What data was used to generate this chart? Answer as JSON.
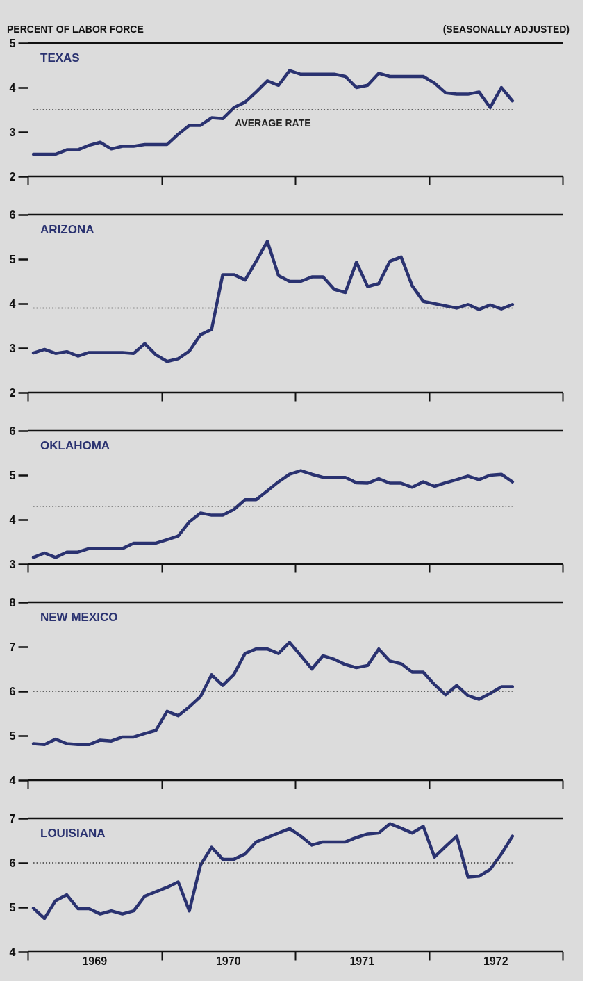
{
  "chart_data": [
    {
      "type": "line",
      "title": "TEXAS",
      "ylabel": "PERCENT OF LABOR FORCE",
      "subtitle": "(SEASONALLY ADJUSTED)",
      "x": [
        1969.042,
        1969.125,
        1969.208,
        1969.292,
        1969.375,
        1969.458,
        1969.542,
        1969.625,
        1969.708,
        1969.792,
        1969.875,
        1969.958,
        1970.042,
        1970.125,
        1970.208,
        1970.292,
        1970.375,
        1970.458,
        1970.542,
        1970.625,
        1970.708,
        1970.792,
        1970.875,
        1970.958,
        1971.042,
        1971.125,
        1971.208,
        1971.292,
        1971.375,
        1971.458,
        1971.542,
        1971.625,
        1971.708,
        1971.792,
        1971.875,
        1971.958,
        1972.042,
        1972.125,
        1972.208,
        1972.292,
        1972.375,
        1972.458,
        1972.542,
        1972.625
      ],
      "series": [
        {
          "color": "#2a3270",
          "values": [
            2.5,
            2.5,
            2.5,
            2.6,
            2.6,
            2.7,
            2.77,
            2.62,
            2.68,
            2.68,
            2.72,
            2.72,
            2.72,
            2.95,
            3.15,
            3.15,
            3.32,
            3.3,
            3.55,
            3.67,
            3.9,
            4.15,
            4.05,
            4.38,
            4.3,
            4.3,
            4.3,
            4.3,
            4.25,
            4.0,
            4.05,
            4.32,
            4.25,
            4.25,
            4.25,
            4.25,
            4.1,
            3.88,
            3.85,
            3.85,
            3.9,
            3.55,
            4.0,
            3.7
          ]
        }
      ],
      "xlim": [
        1969,
        1973
      ],
      "xticks": [
        {
          "value": 1969,
          "label": null
        },
        {
          "value": 1970,
          "label": null
        },
        {
          "value": 1971,
          "label": null
        },
        {
          "value": 1972,
          "label": null
        },
        {
          "value": 1973,
          "label": null
        }
      ],
      "ylim": [
        2,
        5
      ],
      "yticks": [
        2,
        3,
        4,
        5
      ],
      "tick_labels": "y",
      "line_style": "solid",
      "ref_lines": [
        {
          "axis": "y",
          "value": 3.5,
          "label": "AVERAGE RATE",
          "line_style": "dotted",
          "color": "#333333"
        }
      ]
    },
    {
      "type": "line",
      "title": "ARIZONA",
      "x": [
        1969.042,
        1969.125,
        1969.208,
        1969.292,
        1969.375,
        1969.458,
        1969.542,
        1969.625,
        1969.708,
        1969.792,
        1969.875,
        1969.958,
        1970.042,
        1970.125,
        1970.208,
        1970.292,
        1970.375,
        1970.458,
        1970.542,
        1970.625,
        1970.708,
        1970.792,
        1970.875,
        1970.958,
        1971.042,
        1971.125,
        1971.208,
        1971.292,
        1971.375,
        1971.458,
        1971.542,
        1971.625,
        1971.708,
        1971.792,
        1971.875,
        1971.958,
        1972.042,
        1972.125,
        1972.208,
        1972.292,
        1972.375,
        1972.458,
        1972.542,
        1972.625
      ],
      "series": [
        {
          "color": "#2a3270",
          "values": [
            2.89,
            2.97,
            2.88,
            2.92,
            2.82,
            2.9,
            2.9,
            2.9,
            2.9,
            2.88,
            3.1,
            2.85,
            2.7,
            2.76,
            2.93,
            3.3,
            3.42,
            4.65,
            4.65,
            4.53,
            4.95,
            5.4,
            4.63,
            4.5,
            4.5,
            4.6,
            4.6,
            4.32,
            4.25,
            4.93,
            4.38,
            4.45,
            4.95,
            5.05,
            4.4,
            4.05,
            4.0,
            3.95,
            3.9,
            3.98,
            3.87,
            3.97,
            3.88,
            3.98
          ]
        }
      ],
      "xlim": [
        1969,
        1973
      ],
      "xticks": [
        {
          "value": 1969,
          "label": null
        },
        {
          "value": 1970,
          "label": null
        },
        {
          "value": 1971,
          "label": null
        },
        {
          "value": 1972,
          "label": null
        },
        {
          "value": 1973,
          "label": null
        }
      ],
      "ylim": [
        2,
        6
      ],
      "yticks": [
        2,
        3,
        4,
        5,
        6
      ],
      "tick_labels": "y",
      "line_style": "solid",
      "ref_lines": [
        {
          "axis": "y",
          "value": 3.9,
          "line_style": "dotted",
          "color": "#333333"
        }
      ]
    },
    {
      "type": "line",
      "title": "OKLAHOMA",
      "x": [
        1969.042,
        1969.125,
        1969.208,
        1969.292,
        1969.375,
        1969.458,
        1969.542,
        1969.625,
        1969.708,
        1969.792,
        1969.875,
        1969.958,
        1970.042,
        1970.125,
        1970.208,
        1970.292,
        1970.375,
        1970.458,
        1970.542,
        1970.625,
        1970.708,
        1970.792,
        1970.875,
        1970.958,
        1971.042,
        1971.125,
        1971.208,
        1971.292,
        1971.375,
        1971.458,
        1971.542,
        1971.625,
        1971.708,
        1971.792,
        1971.875,
        1971.958,
        1972.042,
        1972.125,
        1972.208,
        1972.292,
        1972.375,
        1972.458,
        1972.542,
        1972.625
      ],
      "series": [
        {
          "color": "#2a3270",
          "values": [
            3.15,
            3.25,
            3.15,
            3.27,
            3.27,
            3.35,
            3.35,
            3.35,
            3.35,
            3.47,
            3.47,
            3.47,
            3.55,
            3.63,
            3.95,
            4.15,
            4.1,
            4.1,
            4.23,
            4.45,
            4.45,
            4.65,
            4.85,
            5.02,
            5.1,
            5.02,
            4.95,
            4.95,
            4.95,
            4.83,
            4.82,
            4.92,
            4.82,
            4.82,
            4.73,
            4.85,
            4.75,
            4.83,
            4.9,
            4.98,
            4.9,
            5.0,
            5.02,
            4.85
          ]
        }
      ],
      "xlim": [
        1969,
        1973
      ],
      "xticks": [
        {
          "value": 1969,
          "label": null
        },
        {
          "value": 1970,
          "label": null
        },
        {
          "value": 1971,
          "label": null
        },
        {
          "value": 1972,
          "label": null
        },
        {
          "value": 1973,
          "label": null
        }
      ],
      "ylim": [
        3,
        6
      ],
      "yticks": [
        3,
        4,
        5,
        6
      ],
      "tick_labels": "y",
      "line_style": "solid",
      "ref_lines": [
        {
          "axis": "y",
          "value": 4.3,
          "line_style": "dotted",
          "color": "#333333"
        }
      ]
    },
    {
      "type": "line",
      "title": "NEW MEXICO",
      "x": [
        1969.042,
        1969.125,
        1969.208,
        1969.292,
        1969.375,
        1969.458,
        1969.542,
        1969.625,
        1969.708,
        1969.792,
        1969.875,
        1969.958,
        1970.042,
        1970.125,
        1970.208,
        1970.292,
        1970.375,
        1970.458,
        1970.542,
        1970.625,
        1970.708,
        1970.792,
        1970.875,
        1970.958,
        1971.042,
        1971.125,
        1971.208,
        1971.292,
        1971.375,
        1971.458,
        1971.542,
        1971.625,
        1971.708,
        1971.792,
        1971.875,
        1971.958,
        1972.042,
        1972.125,
        1972.208,
        1972.292,
        1972.375,
        1972.458,
        1972.542,
        1972.625
      ],
      "series": [
        {
          "color": "#2a3270",
          "values": [
            4.82,
            4.8,
            4.92,
            4.82,
            4.8,
            4.8,
            4.9,
            4.88,
            4.97,
            4.97,
            5.05,
            5.12,
            5.55,
            5.45,
            5.65,
            5.88,
            6.37,
            6.13,
            6.38,
            6.85,
            6.95,
            6.95,
            6.85,
            7.1,
            6.8,
            6.5,
            6.8,
            6.72,
            6.6,
            6.53,
            6.58,
            6.95,
            6.68,
            6.62,
            6.43,
            6.43,
            6.15,
            5.92,
            6.13,
            5.9,
            5.82,
            5.95,
            6.1,
            6.1
          ]
        }
      ],
      "xlim": [
        1969,
        1973
      ],
      "xticks": [
        {
          "value": 1969,
          "label": null
        },
        {
          "value": 1970,
          "label": null
        },
        {
          "value": 1971,
          "label": null
        },
        {
          "value": 1972,
          "label": null
        },
        {
          "value": 1973,
          "label": null
        }
      ],
      "ylim": [
        4,
        8
      ],
      "yticks": [
        4,
        5,
        6,
        7,
        8
      ],
      "tick_labels": "y",
      "line_style": "solid",
      "ref_lines": [
        {
          "axis": "y",
          "value": 6.0,
          "line_style": "dotted",
          "color": "#333333"
        }
      ]
    },
    {
      "type": "line",
      "title": "LOUISIANA",
      "x": [
        1969.042,
        1969.125,
        1969.208,
        1969.292,
        1969.375,
        1969.458,
        1969.542,
        1969.625,
        1969.708,
        1969.792,
        1969.875,
        1969.958,
        1970.042,
        1970.125,
        1970.208,
        1970.292,
        1970.375,
        1970.458,
        1970.542,
        1970.625,
        1970.708,
        1970.792,
        1970.875,
        1970.958,
        1971.042,
        1971.125,
        1971.208,
        1971.292,
        1971.375,
        1971.458,
        1971.542,
        1971.625,
        1971.708,
        1971.792,
        1971.875,
        1971.958,
        1972.042,
        1972.125,
        1972.208,
        1972.292,
        1972.375,
        1972.458,
        1972.542,
        1972.625
      ],
      "series": [
        {
          "color": "#2a3270",
          "values": [
            4.98,
            4.75,
            5.15,
            5.28,
            4.97,
            4.97,
            4.85,
            4.92,
            4.85,
            4.92,
            5.25,
            5.35,
            5.45,
            5.57,
            4.92,
            5.95,
            6.35,
            6.08,
            6.08,
            6.2,
            6.47,
            6.57,
            6.67,
            6.77,
            6.6,
            6.4,
            6.47,
            6.47,
            6.47,
            6.57,
            6.65,
            6.67,
            6.88,
            6.78,
            6.67,
            6.82,
            6.13,
            6.37,
            6.6,
            5.68,
            5.7,
            5.85,
            6.2,
            6.6
          ]
        }
      ],
      "xlim": [
        1969,
        1973
      ],
      "xticks": [
        {
          "value": 1969,
          "label": null
        },
        {
          "value": 1969.5,
          "label": "1969"
        },
        {
          "value": 1970,
          "label": null
        },
        {
          "value": 1970.5,
          "label": "1970"
        },
        {
          "value": 1971,
          "label": null
        },
        {
          "value": 1971.5,
          "label": "1971"
        },
        {
          "value": 1972,
          "label": null
        },
        {
          "value": 1972.5,
          "label": "1972"
        },
        {
          "value": 1973,
          "label": null
        }
      ],
      "ylim": [
        4,
        7
      ],
      "yticks": [
        4,
        5,
        6,
        7
      ],
      "line_style": "solid",
      "ref_lines": [
        {
          "axis": "y",
          "value": 6.0,
          "line_style": "dotted",
          "color": "#333333"
        }
      ]
    }
  ]
}
